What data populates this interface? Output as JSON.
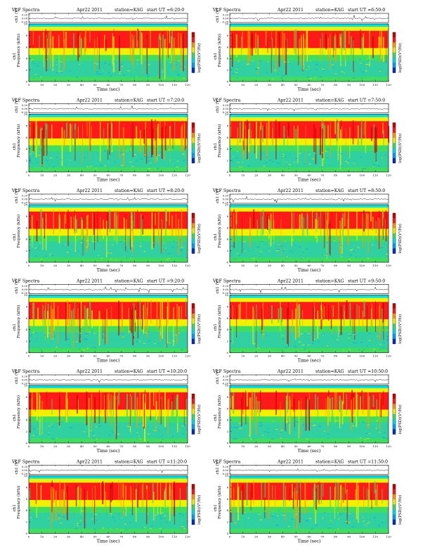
{
  "page": {
    "header": {
      "left": "VLF Spectra",
      "date": "Apr22 2011",
      "station": "station=KAG",
      "start_label": "start  UT ="
    },
    "ts_ylabel": "ch1 (V)",
    "spec_ylabel": "ch1\nFrequency (kHz)",
    "cbar_label": "log(PSD)(V²/Hz)",
    "xlabel": "Time (sec)",
    "colors": {
      "blue": "#00a0ff",
      "cyan": "#00e0e0",
      "green": "#40dd60",
      "yellow": "#f0f000",
      "orange": "#ff9900",
      "red": "#ff1a1a",
      "dark_red": "#cc0000"
    }
  },
  "chart_data": [
    {
      "type": "heatmap",
      "panel": "left",
      "start_ut": "6:20:0",
      "x": {
        "min": 0,
        "max": 120,
        "ticks": [
          0,
          10,
          20,
          30,
          40,
          50,
          60,
          70,
          80,
          90,
          100,
          110,
          120
        ]
      },
      "y": {
        "min": 0,
        "max": 10,
        "ticks": [
          0,
          2,
          4,
          6,
          8,
          10
        ]
      },
      "ts_y": {
        "ticks": [
          "0.20",
          "0.00",
          "-0.20"
        ]
      }
    },
    {
      "type": "heatmap",
      "panel": "right",
      "start_ut": "6:50:0",
      "x": {
        "min": 0,
        "max": 120,
        "ticks": [
          0,
          10,
          20,
          30,
          40,
          50,
          60,
          70,
          80,
          90,
          100,
          110,
          120
        ]
      },
      "y": {
        "min": 0,
        "max": 10,
        "ticks": [
          0,
          2,
          4,
          6,
          8,
          10
        ]
      },
      "ts_y": {
        "ticks": [
          "0.20",
          "0.00",
          "-0.20"
        ]
      }
    },
    {
      "type": "heatmap",
      "panel": "left",
      "start_ut": "7:20:0",
      "x": {
        "min": 0,
        "max": 120,
        "ticks": [
          0,
          10,
          20,
          30,
          40,
          50,
          60,
          70,
          80,
          90,
          100,
          110,
          120
        ]
      },
      "y": {
        "min": 0,
        "max": 10,
        "ticks": [
          0,
          2,
          4,
          6,
          8,
          10
        ]
      },
      "ts_y": {
        "ticks": [
          "0.20",
          "0.00",
          "-0.20"
        ]
      }
    },
    {
      "type": "heatmap",
      "panel": "right",
      "start_ut": "7:50:0",
      "x": {
        "min": 0,
        "max": 120,
        "ticks": [
          0,
          10,
          20,
          30,
          40,
          50,
          60,
          70,
          80,
          90,
          100,
          110,
          120
        ]
      },
      "y": {
        "min": 0,
        "max": 10,
        "ticks": [
          0,
          2,
          4,
          6,
          8,
          10
        ]
      },
      "ts_y": {
        "ticks": [
          "0.20",
          "0.00",
          "-0.20"
        ]
      }
    },
    {
      "type": "heatmap",
      "panel": "left",
      "start_ut": "8:20:0",
      "x": {
        "min": 0,
        "max": 120,
        "ticks": [
          0,
          10,
          20,
          30,
          40,
          50,
          60,
          70,
          80,
          90,
          100,
          110,
          120
        ]
      },
      "y": {
        "min": 0,
        "max": 10,
        "ticks": [
          0,
          2,
          4,
          6,
          8,
          10
        ]
      },
      "ts_y": {
        "ticks": [
          "0.20",
          "0.00",
          "-0.20"
        ]
      }
    },
    {
      "type": "heatmap",
      "panel": "right",
      "start_ut": "8:50:0",
      "x": {
        "min": 0,
        "max": 120,
        "ticks": [
          0,
          10,
          20,
          30,
          40,
          50,
          60,
          70,
          80,
          90,
          100,
          110,
          120
        ]
      },
      "y": {
        "min": 0,
        "max": 10,
        "ticks": [
          0,
          2,
          4,
          6,
          8,
          10
        ]
      },
      "ts_y": {
        "ticks": [
          "0.20",
          "0.00",
          "-0.20"
        ]
      }
    },
    {
      "type": "heatmap",
      "panel": "left",
      "start_ut": "9:20:0",
      "x": {
        "min": 0,
        "max": 120,
        "ticks": [
          0,
          10,
          20,
          30,
          40,
          50,
          60,
          70,
          80,
          90,
          100,
          110,
          120
        ]
      },
      "y": {
        "min": 0,
        "max": 10,
        "ticks": [
          0,
          2,
          4,
          6,
          8,
          10
        ]
      },
      "ts_y": {
        "ticks": [
          "0.20",
          "0.00",
          "-0.20"
        ]
      }
    },
    {
      "type": "heatmap",
      "panel": "right",
      "start_ut": "9:50:0",
      "x": {
        "min": 0,
        "max": 120,
        "ticks": [
          0,
          10,
          20,
          30,
          40,
          50,
          60,
          70,
          80,
          90,
          100,
          110,
          120
        ]
      },
      "y": {
        "min": 0,
        "max": 10,
        "ticks": [
          0,
          2,
          4,
          6,
          8,
          10
        ]
      },
      "ts_y": {
        "ticks": [
          "0.20",
          "0.00",
          "-0.20"
        ]
      }
    },
    {
      "type": "heatmap",
      "panel": "left",
      "start_ut": "10:20:0",
      "x": {
        "min": 0,
        "max": 120,
        "ticks": [
          0,
          10,
          20,
          30,
          40,
          50,
          60,
          70,
          80,
          90,
          100,
          110,
          120
        ]
      },
      "y": {
        "min": 0,
        "max": 10,
        "ticks": [
          0,
          2,
          4,
          6,
          8,
          10
        ]
      },
      "ts_y": {
        "ticks": [
          "0.20",
          "0.00",
          "-0.20"
        ]
      }
    },
    {
      "type": "heatmap",
      "panel": "right",
      "start_ut": "10:50:0",
      "x": {
        "min": 0,
        "max": 120,
        "ticks": [
          0,
          10,
          20,
          30,
          40,
          50,
          60,
          70,
          80,
          90,
          100,
          110,
          120
        ]
      },
      "y": {
        "min": 0,
        "max": 10,
        "ticks": [
          0,
          2,
          4,
          6,
          8,
          10
        ]
      },
      "ts_y": {
        "ticks": [
          "0.20",
          "0.00",
          "-0.20"
        ]
      }
    },
    {
      "type": "heatmap",
      "panel": "left",
      "start_ut": "11:20:0",
      "x": {
        "min": 0,
        "max": 120,
        "ticks": [
          0,
          10,
          20,
          30,
          40,
          50,
          60,
          70,
          80,
          90,
          100,
          110,
          120
        ]
      },
      "y": {
        "min": 0,
        "max": 10,
        "ticks": [
          0,
          2,
          4,
          6,
          8,
          10
        ]
      },
      "ts_y": {
        "ticks": [
          "0.20",
          "0.00",
          "-0.20"
        ]
      }
    },
    {
      "type": "heatmap",
      "panel": "right",
      "start_ut": "11:50:0",
      "x": {
        "min": 0,
        "max": 120,
        "ticks": [
          0,
          10,
          20,
          30,
          40,
          50,
          60,
          70,
          80,
          90,
          100,
          110,
          120
        ]
      },
      "y": {
        "min": 0,
        "max": 10,
        "ticks": [
          0,
          2,
          4,
          6,
          8,
          10
        ]
      },
      "ts_y": {
        "ticks": [
          "0.20",
          "0.00",
          "-0.20"
        ]
      }
    }
  ]
}
